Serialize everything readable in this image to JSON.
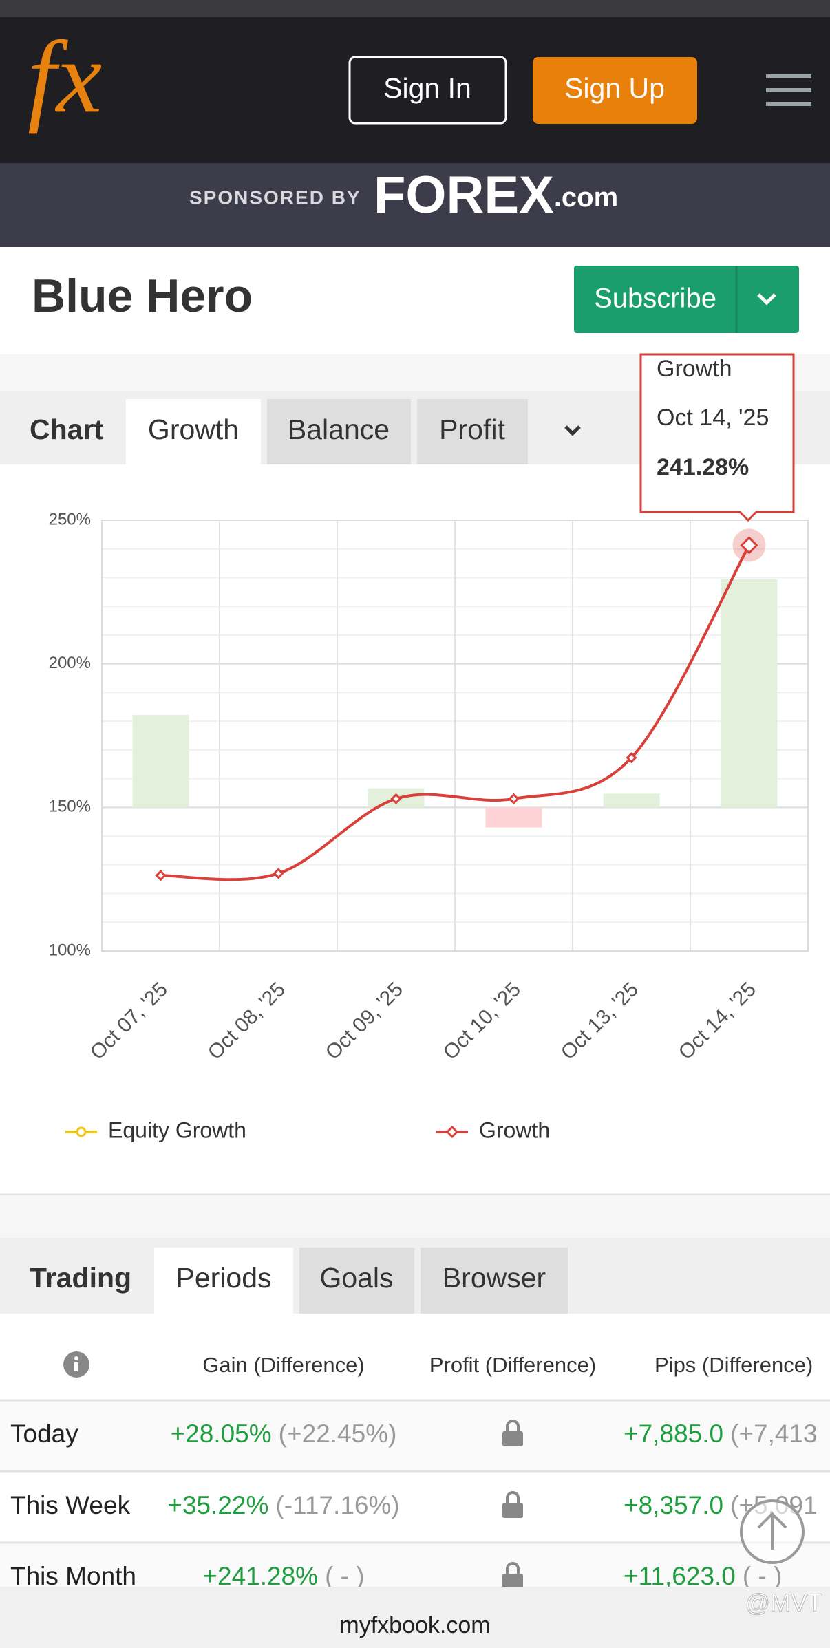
{
  "header": {
    "logo": "fx",
    "sign_in": "Sign In",
    "sign_up": "Sign Up"
  },
  "sponsor": {
    "label": "SPONSORED BY",
    "brand": "FOREX",
    "brand_suffix": ".com"
  },
  "title": "Blue Hero",
  "subscribe": "Subscribe",
  "chart_tabs": {
    "label": "Chart",
    "tabs": [
      "Growth",
      "Balance",
      "Profit"
    ]
  },
  "chart_data": {
    "type": "line",
    "categories": [
      "Oct 07, '25",
      "Oct 08, '25",
      "Oct 09, '25",
      "Oct 10, '25",
      "Oct 13, '25",
      "Oct 14, '25"
    ],
    "series": [
      {
        "name": "Equity Growth",
        "color": "#f0c419",
        "values": [
          null,
          null,
          null,
          null,
          null,
          null
        ]
      },
      {
        "name": "Growth",
        "color": "#d9403a",
        "values": [
          126.3,
          127.0,
          153.0,
          153.0,
          167.3,
          241.28
        ]
      },
      {
        "type": "bar",
        "axis": "y2",
        "color": "#e3f1dc",
        "negative_color": "#fdd3d6",
        "values": [
          32.2,
          0,
          6.6,
          -7.0,
          4.8,
          79.4
        ]
      }
    ],
    "ylim": [
      100,
      250
    ],
    "yticks": [
      {
        "value": 100,
        "label": "100%"
      },
      {
        "value": 150,
        "label": "150%"
      },
      {
        "value": 200,
        "label": "200%"
      },
      {
        "value": 250,
        "label": "250%"
      }
    ],
    "minor_yticks": [
      110,
      120,
      130,
      140,
      160,
      170,
      180,
      190,
      210,
      220,
      230,
      240
    ],
    "y2lim": [
      -50,
      100
    ],
    "grid": true,
    "legend": "bottom"
  },
  "tooltip": {
    "series": "Growth",
    "category": "Oct 14, '25",
    "value": "241.28%"
  },
  "trading_tabs": {
    "label": "Trading",
    "tabs": [
      "Periods",
      "Goals",
      "Browser"
    ]
  },
  "table": {
    "columns": [
      "Gain (Difference)",
      "Profit (Difference)",
      "Pips (Difference)"
    ],
    "rows": [
      [
        "Today",
        "+28.05%",
        "(+22.45%)",
        "+7,885.0",
        "(+7,413"
      ],
      [
        "This Week",
        "+35.22%",
        "(-117.16%)",
        "+8,357.0",
        "(+5,091"
      ],
      [
        "This Month",
        "+241.28%",
        "( - )",
        "+11,623.0",
        "( - )"
      ]
    ]
  },
  "footer": "myfxbook.com",
  "watermark": "@MVT"
}
